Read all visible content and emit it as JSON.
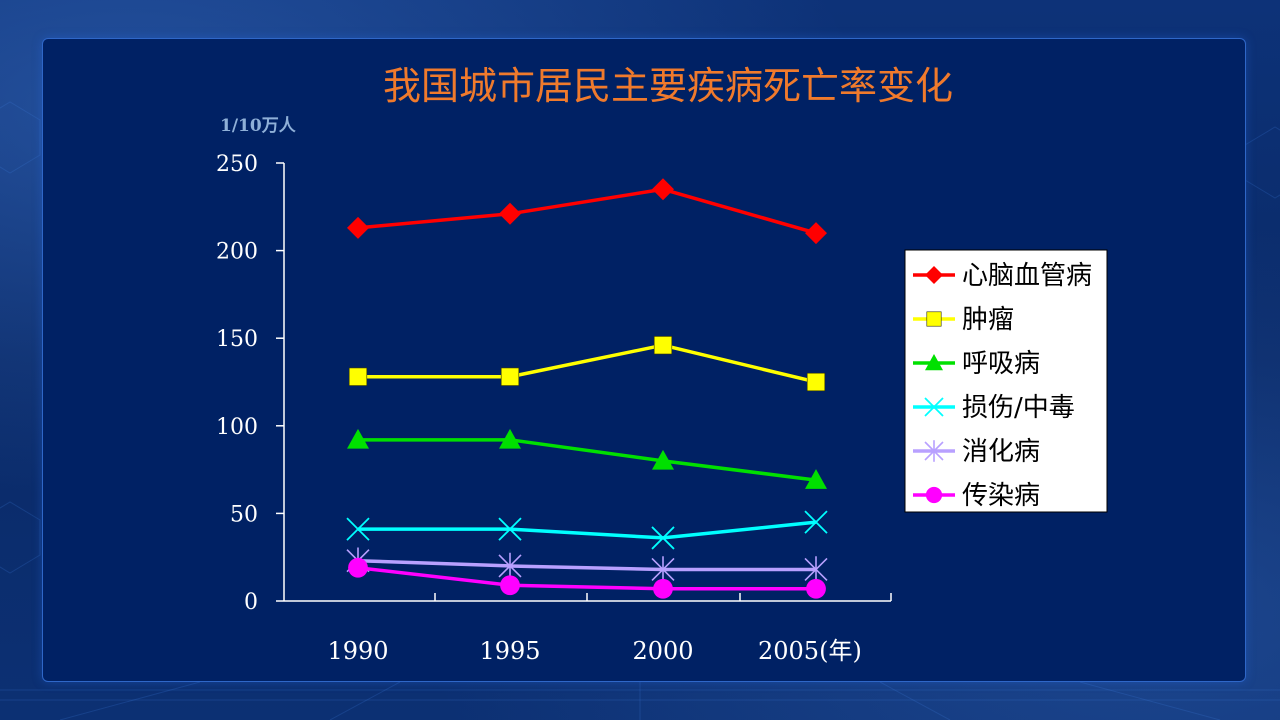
{
  "colors": {
    "page_background": "#0b2a6a",
    "panel_background": "#002164",
    "panel_border": "#2f67c8",
    "title": "#f07a2c",
    "unit_label": "#8fb0d8",
    "axis": "#ffffff",
    "legend_background": "#ffffff"
  },
  "chart_data": {
    "type": "line",
    "title": "我国城市居民主要疾病死亡率变化",
    "ylabel": "1/10万人",
    "xlabel": "",
    "categories": [
      "1990",
      "1995",
      "2000",
      "2005(年)"
    ],
    "ylim": [
      0,
      250
    ],
    "yticks": [
      0,
      50,
      100,
      150,
      200,
      250
    ],
    "grid": false,
    "legend_position": "right",
    "series": [
      {
        "name": "心脑血管病",
        "color": "#ff0000",
        "marker": "diamond",
        "values": [
          213,
          221,
          235,
          210
        ]
      },
      {
        "name": "肿瘤",
        "color": "#ffff00",
        "marker": "square",
        "values": [
          128,
          128,
          146,
          125
        ]
      },
      {
        "name": "呼吸病",
        "color": "#00e000",
        "marker": "triangle",
        "values": [
          92,
          92,
          80,
          69
        ]
      },
      {
        "name": "损伤/中毒",
        "color": "#00ffff",
        "marker": "x",
        "values": [
          41,
          41,
          36,
          45
        ]
      },
      {
        "name": "消化病",
        "color": "#b8a0ff",
        "marker": "asterisk",
        "values": [
          23,
          20,
          18,
          18
        ]
      },
      {
        "name": "传染病",
        "color": "#ff00ff",
        "marker": "circle",
        "values": [
          19,
          9,
          7,
          7
        ]
      }
    ]
  }
}
